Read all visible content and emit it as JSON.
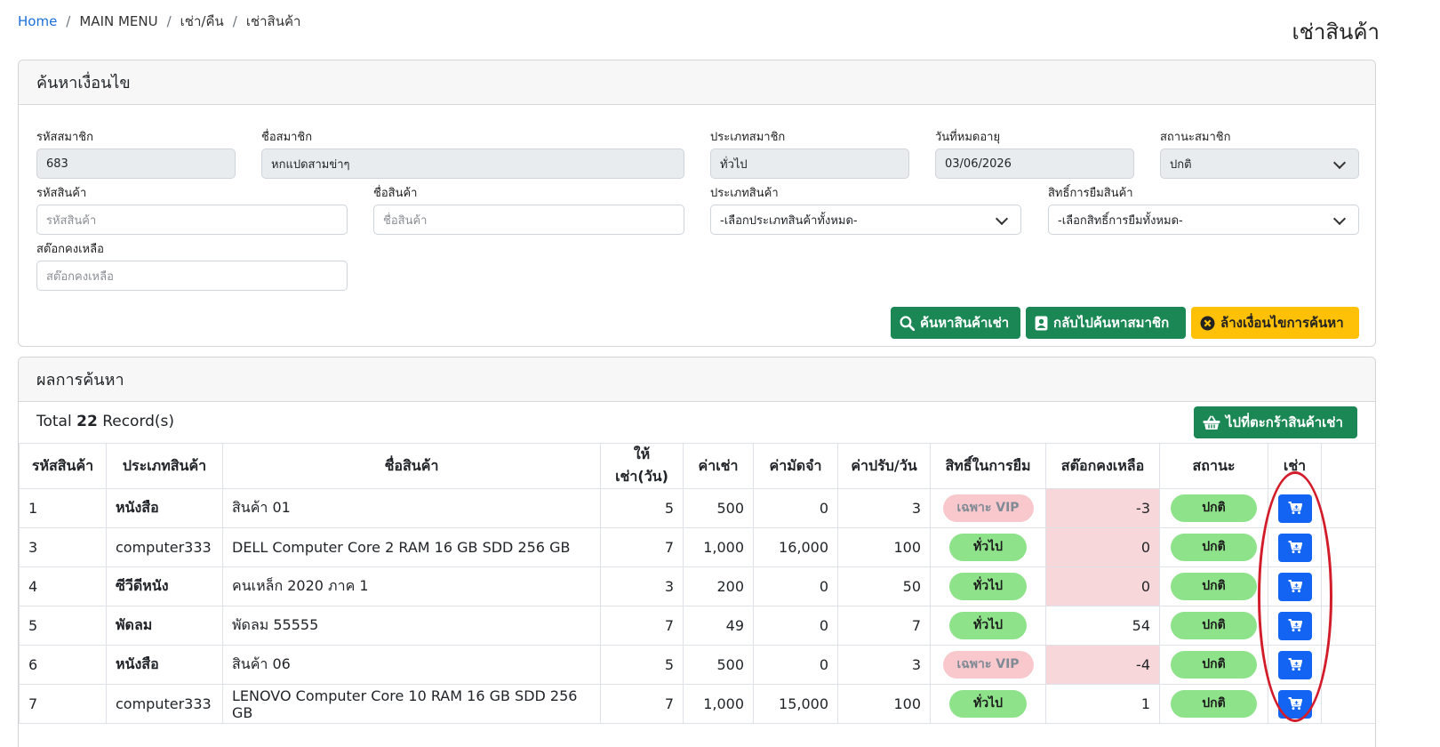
{
  "breadcrumb": {
    "home": "Home",
    "items": [
      "MAIN MENU",
      "เช่า/คืน",
      "เช่าสินค้า"
    ]
  },
  "page_title": "เช่าสินค้า",
  "search": {
    "title": "ค้นหาเงื่อนไข",
    "member_id": {
      "label": "รหัสสมาชิก",
      "value": "683"
    },
    "member_name": {
      "label": "ชื่อสมาชิก",
      "value": "หกแปดสามข่าๆ"
    },
    "member_type": {
      "label": "ประเภทสมาชิก",
      "value": "ทั่วไป"
    },
    "expiry_date": {
      "label": "วันที่หมดอายุ",
      "value": "03/06/2026"
    },
    "member_status": {
      "label": "สถานะสมาชิก",
      "value": "ปกติ"
    },
    "product_id": {
      "label": "รหัสสินค้า",
      "placeholder": "รหัสสินค้า"
    },
    "product_name": {
      "label": "ชื่อสินค้า",
      "placeholder": "ชื่อสินค้า"
    },
    "product_type": {
      "label": "ประเภทสินค้า",
      "value": "-เลือกประเภทสินค้าทั้งหมด-"
    },
    "borrow_right": {
      "label": "สิทธิ์การยืมสินค้า",
      "value": "-เลือกสิทธิ์การยืมทั้งหมด-"
    },
    "stock": {
      "label": "สต๊อกคงเหลือ",
      "placeholder": "สต๊อกคงเหลือ"
    },
    "buttons": {
      "search": "ค้นหาสินค้าเช่า",
      "back": "กลับไปค้นหาสมาชิก",
      "clear": "ล้างเงื่อนไขการค้นหา"
    }
  },
  "results": {
    "title": "ผลการค้นหา",
    "total_prefix": "Total",
    "total_count": "22",
    "total_suffix": "Record(s)",
    "cart_button": "ไปที่ตะกร้าสินค้าเช่า",
    "columns": [
      "รหัสสินค้า",
      "ประเภทสินค้า",
      "ชื่อสินค้า",
      "ให้เช่า(วัน)",
      "ค่าเช่า",
      "ค่ามัดจำ",
      "ค่าปรับ/วัน",
      "สิทธิ์ในการยืม",
      "สต๊อกคงเหลือ",
      "สถานะ",
      "เช่า",
      ""
    ],
    "rows": [
      {
        "id": "1",
        "type": "หนังสือ",
        "name": "สินค้า 01",
        "days": "5",
        "rent": "500",
        "deposit": "0",
        "fine": "3",
        "right": "เฉพาะ VIP",
        "stock": "-3",
        "status": "ปกติ"
      },
      {
        "id": "3",
        "type": "computer333",
        "name": "DELL Computer Core 2 RAM 16 GB SDD 256 GB",
        "days": "7",
        "rent": "1,000",
        "deposit": "16,000",
        "fine": "100",
        "right": "ทั่วไป",
        "stock": "0",
        "status": "ปกติ"
      },
      {
        "id": "4",
        "type": "ซีวีดีหนัง",
        "name": "คนเหล็ก 2020 ภาค 1",
        "days": "3",
        "rent": "200",
        "deposit": "0",
        "fine": "50",
        "right": "ทั่วไป",
        "stock": "0",
        "status": "ปกติ"
      },
      {
        "id": "5",
        "type": "พัดลม",
        "name": "พัดลม 55555",
        "days": "7",
        "rent": "49",
        "deposit": "0",
        "fine": "7",
        "right": "ทั่วไป",
        "stock": "54",
        "status": "ปกติ"
      },
      {
        "id": "6",
        "type": "หนังสือ",
        "name": "สินค้า 06",
        "days": "5",
        "rent": "500",
        "deposit": "0",
        "fine": "3",
        "right": "เฉพาะ VIP",
        "stock": "-4",
        "status": "ปกติ"
      },
      {
        "id": "7",
        "type": "computer333",
        "name": "LENOVO Computer Core 10 RAM 16 GB SDD 256 GB",
        "days": "7",
        "rent": "1,000",
        "deposit": "15,000",
        "fine": "100",
        "right": "ทั่วไป",
        "stock": "1",
        "status": "ปกติ"
      }
    ]
  },
  "colors": {
    "primary_green": "#1a8754",
    "warning_yellow": "#ffc107",
    "rent_blue": "#1464f4",
    "pill_green": "#8ee28a",
    "pill_pink": "#f8c8cd",
    "stock_danger": "#f8d7da",
    "annotation_red": "#d31c2a"
  },
  "icons": {
    "search_button": "magnifier-icon",
    "back_button": "contact-card-icon",
    "clear_button": "x-circle-icon",
    "cart_button": "basket-icon",
    "rent_button": "cart-icon"
  }
}
